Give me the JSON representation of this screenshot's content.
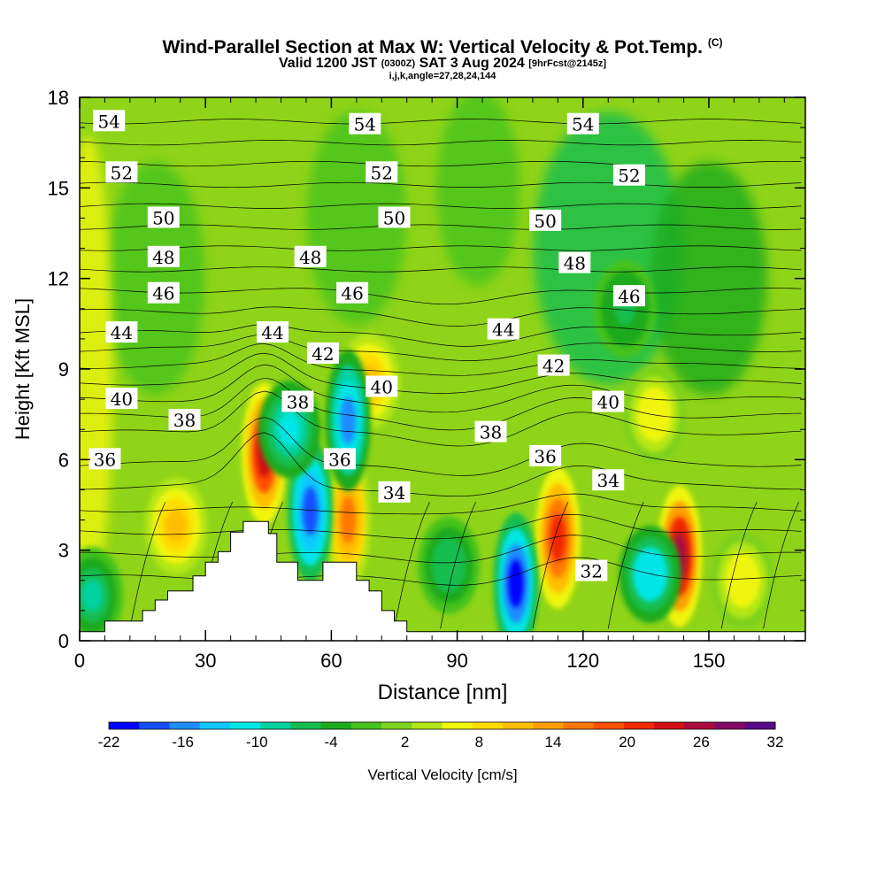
{
  "header": {
    "title": "Wind-Parallel Section at Max W: Vertical Velocity & Pot.Temp.",
    "title_mark": "(C)",
    "valid_prefix": "Valid 1200 JST",
    "valid_utc": "(0300Z)",
    "valid_date": "SAT 3 Aug 2024",
    "forecast": "[9hrFcst@2145z]",
    "indices": "i,j,k,angle=27,28,24,144"
  },
  "chart_data": {
    "type": "heatmap",
    "title": "Wind-Parallel Section at Max W: Vertical Velocity & Pot.Temp.",
    "xlabel": "Distance [nm]",
    "ylabel": "Height [Kft MSL]",
    "xlim": [
      0,
      173
    ],
    "ylim": [
      0,
      18
    ],
    "x_ticks": [
      0,
      30,
      60,
      90,
      120,
      150
    ],
    "y_ticks": [
      0,
      3,
      6,
      9,
      12,
      15,
      18
    ],
    "colorbar": {
      "label": "Vertical Velocity [cm/s]",
      "tick_labels": [
        -22,
        -16,
        -10,
        -4,
        2,
        8,
        14,
        20,
        26,
        32
      ],
      "min": -22,
      "max": 32,
      "colors": [
        "#0000ff",
        "#1250ff",
        "#1e8cff",
        "#10c8ff",
        "#00e6e6",
        "#00d2a0",
        "#14be50",
        "#1eaa1e",
        "#46c31e",
        "#7dd21e",
        "#b4e619",
        "#f0f50a",
        "#ffdc00",
        "#ffbe00",
        "#ffa000",
        "#ff7800",
        "#ff5000",
        "#f02800",
        "#d20f14",
        "#aa0a3c",
        "#820a64",
        "#5a0a8c"
      ]
    },
    "terrain": [
      [
        0,
        0.3
      ],
      [
        6,
        0.3
      ],
      [
        6,
        0.65
      ],
      [
        15,
        0.65
      ],
      [
        15,
        1.0
      ],
      [
        18,
        1.0
      ],
      [
        18,
        1.35
      ],
      [
        21,
        1.35
      ],
      [
        21,
        1.65
      ],
      [
        27,
        1.65
      ],
      [
        27,
        2.15
      ],
      [
        30,
        2.15
      ],
      [
        30,
        2.6
      ],
      [
        33,
        2.6
      ],
      [
        33,
        2.95
      ],
      [
        36,
        2.95
      ],
      [
        36,
        3.6
      ],
      [
        39,
        3.6
      ],
      [
        39,
        3.95
      ],
      [
        45,
        3.95
      ],
      [
        45,
        3.55
      ],
      [
        47,
        3.55
      ],
      [
        47,
        2.6
      ],
      [
        52,
        2.6
      ],
      [
        52,
        2.0
      ],
      [
        58,
        2.0
      ],
      [
        58,
        2.6
      ],
      [
        66,
        2.6
      ],
      [
        66,
        2.0
      ],
      [
        69,
        2.0
      ],
      [
        69,
        1.65
      ],
      [
        72,
        1.65
      ],
      [
        72,
        1.0
      ],
      [
        75,
        1.0
      ],
      [
        75,
        0.65
      ],
      [
        78,
        0.65
      ],
      [
        78,
        0.3
      ],
      [
        173,
        0.3
      ]
    ],
    "theta_labels": [
      {
        "text": "54",
        "x": 7,
        "y": 17.2
      },
      {
        "text": "54",
        "x": 68,
        "y": 17.1
      },
      {
        "text": "54",
        "x": 120,
        "y": 17.1
      },
      {
        "text": "52",
        "x": 10,
        "y": 15.5
      },
      {
        "text": "52",
        "x": 72,
        "y": 15.5
      },
      {
        "text": "52",
        "x": 131,
        "y": 15.4
      },
      {
        "text": "50",
        "x": 20,
        "y": 14.0
      },
      {
        "text": "50",
        "x": 75,
        "y": 14.0
      },
      {
        "text": "50",
        "x": 111,
        "y": 13.9
      },
      {
        "text": "48",
        "x": 20,
        "y": 12.7
      },
      {
        "text": "48",
        "x": 55,
        "y": 12.7
      },
      {
        "text": "48",
        "x": 118,
        "y": 12.5
      },
      {
        "text": "46",
        "x": 20,
        "y": 11.5
      },
      {
        "text": "46",
        "x": 65,
        "y": 11.5
      },
      {
        "text": "46",
        "x": 131,
        "y": 11.4
      },
      {
        "text": "44",
        "x": 10,
        "y": 10.2
      },
      {
        "text": "44",
        "x": 46,
        "y": 10.2
      },
      {
        "text": "44",
        "x": 101,
        "y": 10.3
      },
      {
        "text": "42",
        "x": 58,
        "y": 9.5
      },
      {
        "text": "42",
        "x": 113,
        "y": 9.1
      },
      {
        "text": "40",
        "x": 10,
        "y": 8.0
      },
      {
        "text": "40",
        "x": 72,
        "y": 8.4
      },
      {
        "text": "40",
        "x": 126,
        "y": 7.9
      },
      {
        "text": "38",
        "x": 25,
        "y": 7.3
      },
      {
        "text": "38",
        "x": 52,
        "y": 7.9
      },
      {
        "text": "38",
        "x": 98,
        "y": 6.9
      },
      {
        "text": "36",
        "x": 6,
        "y": 6.0
      },
      {
        "text": "36",
        "x": 62,
        "y": 6.0
      },
      {
        "text": "36",
        "x": 111,
        "y": 6.1
      },
      {
        "text": "34",
        "x": 75,
        "y": 4.9
      },
      {
        "text": "34",
        "x": 126,
        "y": 5.3
      },
      {
        "text": "32",
        "x": 122,
        "y": 2.3
      }
    ],
    "series": [
      {
        "name": "updraft",
        "x": 44,
        "y": 6.2,
        "value": 24
      },
      {
        "name": "updraft",
        "x": 114,
        "y": 3.4,
        "value": 22
      },
      {
        "name": "updraft",
        "x": 143,
        "y": 2.8,
        "value": 26
      },
      {
        "name": "updraft",
        "x": 64,
        "y": 4.0,
        "value": 16
      },
      {
        "name": "updraft",
        "x": 69,
        "y": 8.6,
        "value": 10
      },
      {
        "name": "updraft",
        "x": 23,
        "y": 3.8,
        "value": 10
      },
      {
        "name": "updraft",
        "x": 137,
        "y": 7.5,
        "value": 6
      },
      {
        "name": "updraft",
        "x": 158,
        "y": 2.0,
        "value": 6
      },
      {
        "name": "downdraft",
        "x": 55,
        "y": 4.3,
        "value": -18
      },
      {
        "name": "downdraft",
        "x": 104,
        "y": 1.9,
        "value": -20
      },
      {
        "name": "downdraft",
        "x": 136,
        "y": 2.2,
        "value": -12
      },
      {
        "name": "downdraft",
        "x": 64,
        "y": 7.3,
        "value": -15
      },
      {
        "name": "downdraft",
        "x": 50,
        "y": 7.0,
        "value": -10
      },
      {
        "name": "downdraft",
        "x": 3,
        "y": 1.5,
        "value": -8
      },
      {
        "name": "downdraft",
        "x": 88,
        "y": 2.5,
        "value": -6
      },
      {
        "name": "downdraft",
        "x": 130,
        "y": 11.0,
        "value": -5
      }
    ]
  }
}
